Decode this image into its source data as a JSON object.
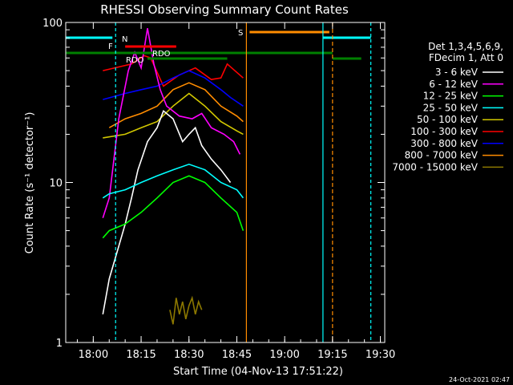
{
  "chart_data": {
    "type": "line",
    "title": "RHESSI Observing Summary Count Rates",
    "xlabel": "Start Time (04-Nov-13 17:51:22)",
    "ylabel": "Count Rate (s⁻¹ detector⁻¹)",
    "yscale": "log",
    "ylim": [
      1,
      100
    ],
    "xlim": [
      "17:51:22",
      "19:31:22"
    ],
    "x_ticks": [
      "18:00",
      "18:15",
      "18:30",
      "18:45",
      "19:00",
      "19:15",
      "19:30"
    ],
    "y_ticks": [
      "1",
      "10",
      "100"
    ],
    "stamp": "24-Oct-2021 02:47",
    "legend": {
      "placement": "right",
      "header": [
        "Det 1,3,4,5,6,9,",
        "FDecim 1, Att 0"
      ],
      "entries": [
        {
          "label": "3 - 6 keV",
          "color": "#ffffff"
        },
        {
          "label": "6 - 12 keV",
          "color": "#ff00ff"
        },
        {
          "label": "12 - 25 keV",
          "color": "#00ff00"
        },
        {
          "label": "25 - 50 keV",
          "color": "#00ffff"
        },
        {
          "label": "50 - 100 keV",
          "color": "#d2c800"
        },
        {
          "label": "100 - 300 keV",
          "color": "#ff0000"
        },
        {
          "label": "300 - 800 keV",
          "color": "#0000ff"
        },
        {
          "label": "800 - 7000 keV",
          "color": "#ff8c00"
        },
        {
          "label": "7000 - 15000 keV",
          "color": "#8c7800"
        }
      ]
    },
    "flags": [
      {
        "label": "N",
        "color": "#00ffff"
      },
      {
        "label": "F",
        "color": "#ff0000"
      },
      {
        "label": "RDO",
        "color": "#ff0000"
      },
      {
        "label": "RDO",
        "color": "#008000"
      },
      {
        "label": "S",
        "color": "#ff8c00"
      }
    ],
    "series": [
      {
        "color": "#ff0000",
        "x": [
          "18:03",
          "18:12",
          "18:16",
          "18:18",
          "18:22",
          "18:27",
          "18:32",
          "18:37",
          "18:40",
          "18:42",
          "18:47"
        ],
        "y": [
          50,
          55,
          62,
          60,
          40,
          47,
          52,
          44,
          45,
          55,
          45
        ]
      },
      {
        "color": "#0000ff",
        "x": [
          "18:03",
          "18:10",
          "18:15",
          "18:20",
          "18:25",
          "18:30",
          "18:35",
          "18:40",
          "18:43",
          "18:47"
        ],
        "y": [
          33,
          36,
          38,
          40,
          45,
          50,
          45,
          38,
          34,
          30
        ]
      },
      {
        "color": "#ff8c00",
        "x": [
          "18:05",
          "18:10",
          "18:15",
          "18:20",
          "18:25",
          "18:30",
          "18:35",
          "18:40",
          "18:45",
          "18:47"
        ],
        "y": [
          22,
          25,
          27,
          30,
          38,
          42,
          38,
          30,
          26,
          24
        ]
      },
      {
        "color": "#d2c800",
        "x": [
          "18:03",
          "18:10",
          "18:15",
          "18:20",
          "18:25",
          "18:30",
          "18:35",
          "18:40",
          "18:45",
          "18:47"
        ],
        "y": [
          19,
          20,
          22,
          24,
          30,
          36,
          30,
          24,
          21,
          20
        ]
      },
      {
        "color": "#ff00ff",
        "x": [
          "18:03",
          "18:05",
          "18:08",
          "18:11",
          "18:13",
          "18:15",
          "18:17",
          "18:19",
          "18:21",
          "18:23",
          "18:27",
          "18:31",
          "18:34",
          "18:37",
          "18:41",
          "18:44",
          "18:46"
        ],
        "y": [
          6,
          8,
          25,
          50,
          65,
          52,
          92,
          55,
          38,
          30,
          26,
          25,
          27,
          22,
          20,
          18,
          15
        ]
      },
      {
        "color": "#ffffff",
        "x": [
          "18:03",
          "18:05",
          "18:08",
          "18:10",
          "18:12",
          "18:14",
          "18:17",
          "18:20",
          "18:22",
          "18:25",
          "18:28",
          "18:30",
          "18:32",
          "18:34",
          "18:37",
          "18:40",
          "18:43"
        ],
        "y": [
          1.5,
          2.5,
          4,
          5.5,
          8,
          12,
          18,
          22,
          28,
          25,
          18,
          20,
          22,
          17,
          14,
          12,
          10
        ]
      },
      {
        "color": "#00ff00",
        "x": [
          "18:03",
          "18:05",
          "18:10",
          "18:15",
          "18:20",
          "18:25",
          "18:30",
          "18:35",
          "18:40",
          "18:45",
          "18:47"
        ],
        "y": [
          4.5,
          5,
          5.5,
          6.5,
          8,
          10,
          11,
          10,
          8,
          6.5,
          5
        ]
      },
      {
        "color": "#00ffff",
        "x": [
          "18:03",
          "18:05",
          "18:10",
          "18:15",
          "18:20",
          "18:25",
          "18:30",
          "18:35",
          "18:40",
          "18:45",
          "18:47"
        ],
        "y": [
          8,
          8.5,
          9,
          10,
          11,
          12,
          13,
          12,
          10,
          9,
          8
        ]
      },
      {
        "color": "#8c7800",
        "x": [
          "18:24",
          "18:25",
          "18:26",
          "18:27",
          "18:28",
          "18:29",
          "18:30",
          "18:31",
          "18:32",
          "18:33",
          "18:34"
        ],
        "y": [
          1.6,
          1.3,
          1.9,
          1.5,
          1.8,
          1.4,
          1.7,
          1.9,
          1.5,
          1.8,
          1.6
        ]
      }
    ]
  }
}
